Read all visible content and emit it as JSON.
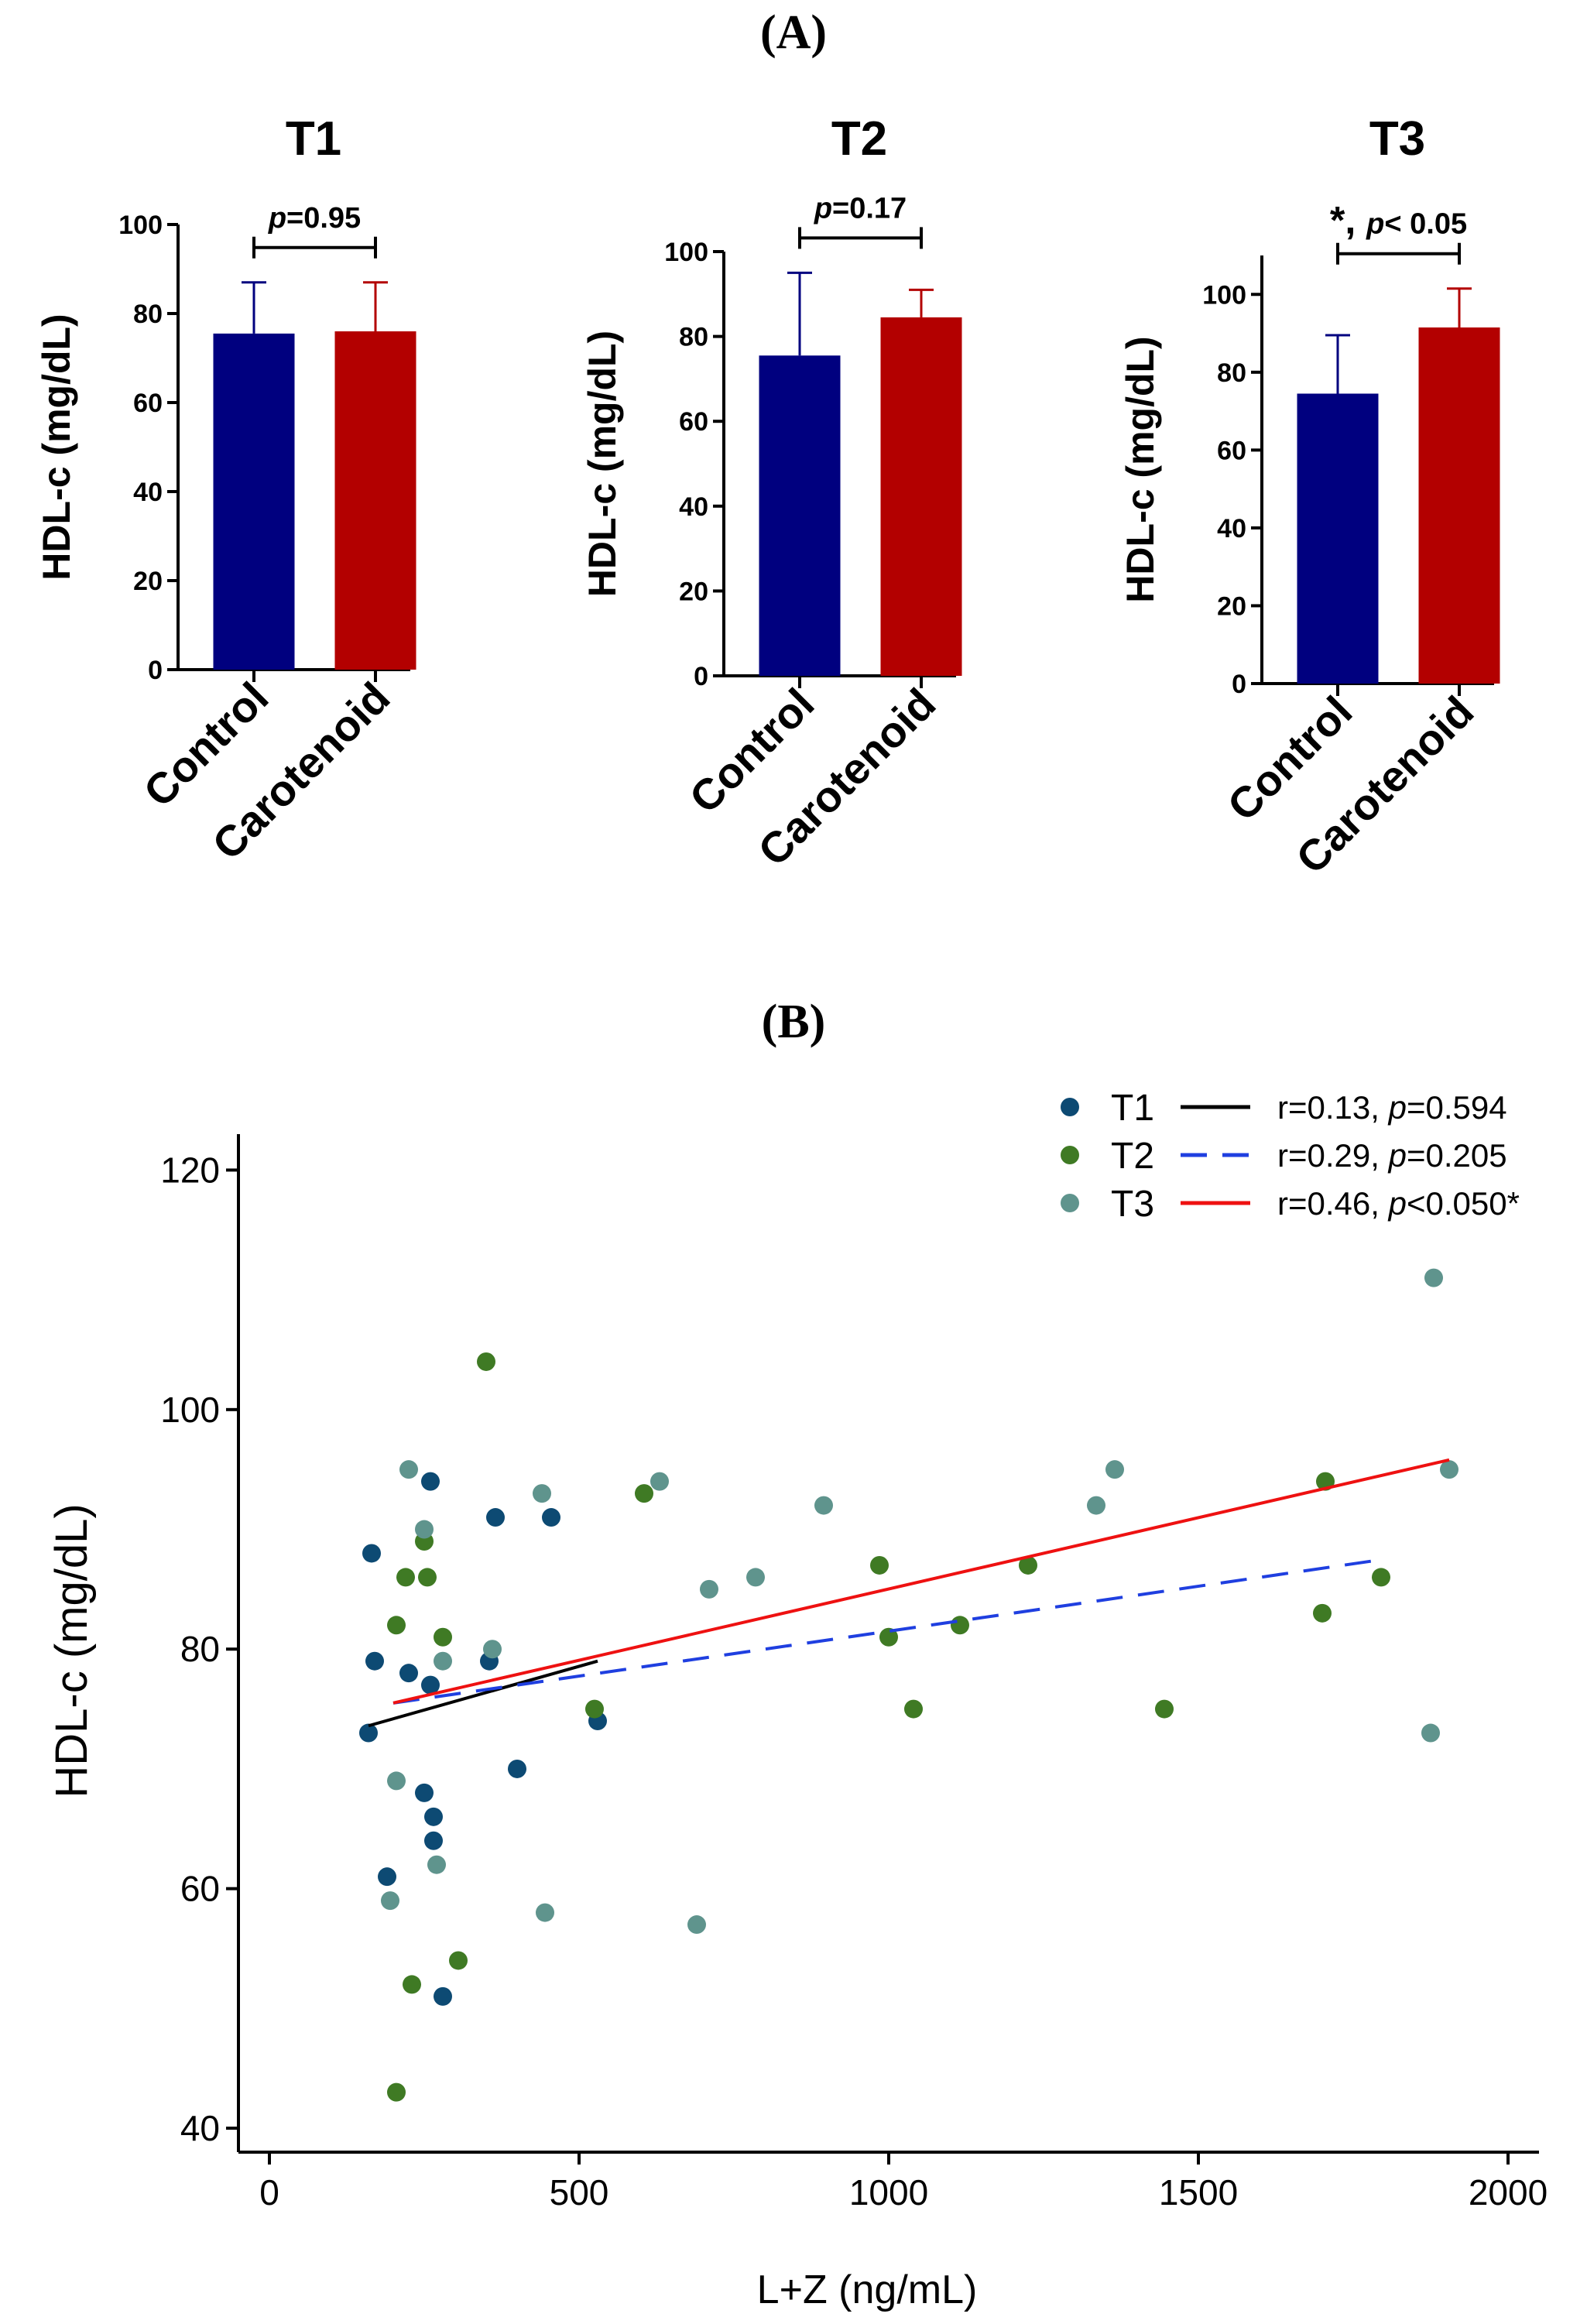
{
  "panel_a_label": "(A)",
  "panel_b_label": "(B)",
  "colors": {
    "control": "#00007f",
    "carotenoid": "#b30000",
    "t1": "#0d4a73",
    "t2": "#3f7a24",
    "t3": "#5f948d",
    "line_t1": "#000000",
    "line_t2": "#1f3fe0",
    "line_t3": "#ee1111"
  },
  "chart_data": [
    {
      "type": "bar",
      "title": "T1",
      "ylabel": "HDL-c (mg/dL)",
      "xlabel": "",
      "ylim": [
        0,
        100
      ],
      "yticks": [
        "0",
        "20",
        "40",
        "60",
        "80",
        "100"
      ],
      "categories": [
        "Control",
        "Carotenoid"
      ],
      "values": [
        75.5,
        76
      ],
      "errors": [
        11.5,
        11
      ],
      "annotation": {
        "p_italic": "p",
        "p_text": "=0.95",
        "star": ""
      }
    },
    {
      "type": "bar",
      "title": "T2",
      "ylabel": "HDL-c (mg/dL)",
      "xlabel": "",
      "ylim": [
        0,
        100
      ],
      "yticks": [
        "0",
        "20",
        "40",
        "60",
        "80",
        "100"
      ],
      "categories": [
        "Control",
        "Carotenoid"
      ],
      "values": [
        75.5,
        84.5
      ],
      "errors": [
        19.5,
        6.5
      ],
      "annotation": {
        "p_italic": "p",
        "p_text": "=0.17",
        "star": ""
      }
    },
    {
      "type": "bar",
      "title": "T3",
      "ylabel": "HDL-c (mg/dL)",
      "xlabel": "",
      "ylim": [
        0,
        110
      ],
      "yticks": [
        "0",
        "20",
        "40",
        "60",
        "80",
        "100"
      ],
      "categories": [
        "Control",
        "Carotenoid"
      ],
      "values": [
        74.5,
        91.5
      ],
      "errors": [
        15,
        10
      ],
      "annotation": {
        "p_italic": "p",
        "p_text": "< 0.05",
        "star": "*, "
      }
    },
    {
      "type": "scatter",
      "title": "",
      "xlabel": "L+Z (ng/mL)",
      "ylabel": "HDL-c (mg/dL)",
      "xlim": [
        -50,
        2050
      ],
      "ylim": [
        38,
        123
      ],
      "xticks": [
        "0",
        "500",
        "1000",
        "1500",
        "2000"
      ],
      "yticks": [
        "40",
        "60",
        "80",
        "100",
        "120"
      ],
      "series": [
        {
          "name": "T1",
          "stat_r": "r=0.13, ",
          "stat_p_italic": "p",
          "stat_p": "=0.594",
          "points": [
            [
              160,
              73
            ],
            [
              165,
              88
            ],
            [
              170,
              79
            ],
            [
              190,
              61
            ],
            [
              225,
              78
            ],
            [
              250,
              68
            ],
            [
              260,
              94
            ],
            [
              260,
              77
            ],
            [
              265,
              64
            ],
            [
              265,
              66
            ],
            [
              280,
              51
            ],
            [
              355,
              79
            ],
            [
              365,
              91
            ],
            [
              400,
              70
            ],
            [
              455,
              91
            ],
            [
              530,
              74
            ]
          ],
          "fit": [
            [
              160,
              73.6
            ],
            [
              530,
              79
            ]
          ]
        },
        {
          "name": "T2",
          "stat_r": "r=0.29, ",
          "stat_p_italic": "p",
          "stat_p": "=0.205",
          "points": [
            [
              205,
              43
            ],
            [
              205,
              82
            ],
            [
              220,
              86
            ],
            [
              230,
              52
            ],
            [
              250,
              89
            ],
            [
              255,
              86
            ],
            [
              280,
              81
            ],
            [
              305,
              54
            ],
            [
              350,
              104
            ],
            [
              525,
              75
            ],
            [
              605,
              93
            ],
            [
              985,
              87
            ],
            [
              1000,
              81
            ],
            [
              1040,
              75
            ],
            [
              1115,
              82
            ],
            [
              1225,
              87
            ],
            [
              1445,
              75
            ],
            [
              1700,
              83
            ],
            [
              1705,
              94
            ],
            [
              1795,
              86
            ]
          ],
          "fit": [
            [
              200,
              75.5
            ],
            [
              1800,
              87.5
            ]
          ]
        },
        {
          "name": "T3",
          "stat_r": "r=0.46, ",
          "stat_p_italic": "p",
          "stat_p": "<0.050*",
          "points": [
            [
              195,
              59
            ],
            [
              205,
              69
            ],
            [
              225,
              95
            ],
            [
              250,
              90
            ],
            [
              270,
              62
            ],
            [
              280,
              79
            ],
            [
              360,
              80
            ],
            [
              440,
              93
            ],
            [
              445,
              58
            ],
            [
              630,
              94
            ],
            [
              690,
              57
            ],
            [
              710,
              85
            ],
            [
              785,
              86
            ],
            [
              895,
              92
            ],
            [
              1335,
              92
            ],
            [
              1365,
              95
            ],
            [
              1875,
              73
            ],
            [
              1880,
              111
            ],
            [
              1905,
              95
            ]
          ],
          "fit": [
            [
              200,
              75.5
            ],
            [
              1905,
              95.8
            ]
          ]
        }
      ]
    }
  ]
}
